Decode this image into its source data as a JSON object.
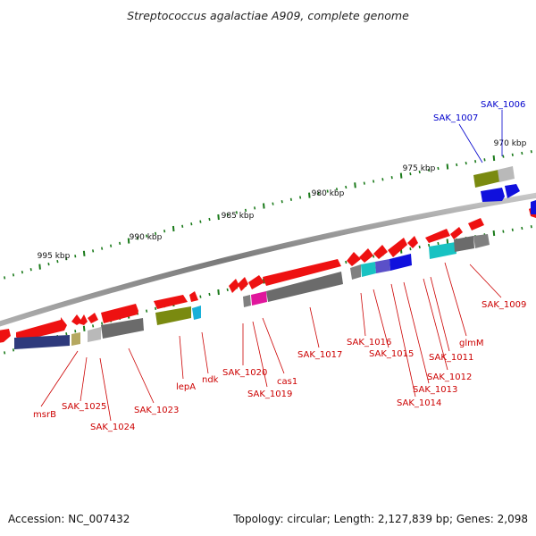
{
  "title": "Streptococcus agalactiae A909, complete genome",
  "footer": {
    "accession": "Accession: NC_007432",
    "topology": "Topology: circular; Length: 2,127,839 bp; Genes: 2,098"
  },
  "scale_labels": [
    "995 kbp",
    "990 kbp",
    "985 kbp",
    "980 kbp",
    "975 kbp",
    "970 kbp"
  ],
  "gene_labels": [
    "msrB",
    "SAK_1025",
    "SAK_1024",
    "SAK_1023",
    "lepA",
    "ndk",
    "SAK_1020",
    "SAK_1019",
    "cas1",
    "SAK_1017",
    "SAK_1016",
    "SAK_1015",
    "SAK_1014",
    "SAK_1013",
    "SAK_1012",
    "SAK_1011",
    "glmM",
    "SAK_1009",
    "SAK_1007",
    "SAK_1006"
  ],
  "colors": {
    "red": "#ee1111",
    "navy": "#2e3a7c",
    "olive": "#7a8a10",
    "gray": "#808080",
    "darkgray": "#6b6b6b",
    "lightgray": "#b9b9b9",
    "khaki": "#b5a860",
    "cyan": "#18b0d8",
    "magenta": "#e0169c",
    "teal": "#18c2c2",
    "purple": "#5b50c8",
    "blue": "#1010dd",
    "label_red": "#cc0000",
    "label_blue": "#0000cc",
    "tick_green": "#1a7a1a"
  }
}
